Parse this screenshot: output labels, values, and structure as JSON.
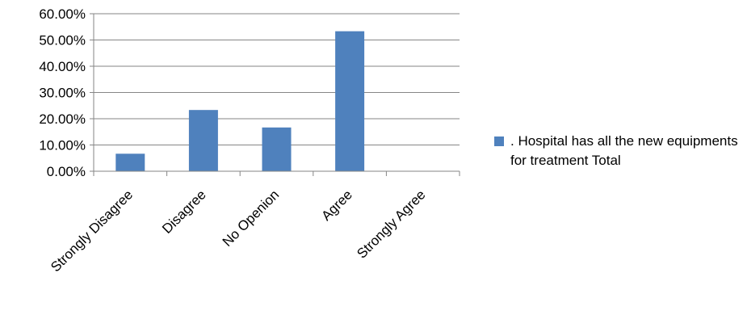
{
  "chart_data": {
    "type": "bar",
    "categories": [
      "Strongly Disagree",
      "Disagree",
      "No Openion",
      "Agree",
      "Strongly Agree"
    ],
    "series": [
      {
        "name": ". Hospital  has all the new equipments for treatment Total",
        "values": [
          6.67,
          23.33,
          16.67,
          53.33,
          0
        ],
        "color": "#4F81BD"
      }
    ],
    "ylim": [
      0,
      60
    ],
    "yticks": [
      "0.00%",
      "10.00%",
      "20.00%",
      "30.00%",
      "40.00%",
      "50.00%",
      "60.00%"
    ],
    "grid": true,
    "legend_position": "right"
  }
}
